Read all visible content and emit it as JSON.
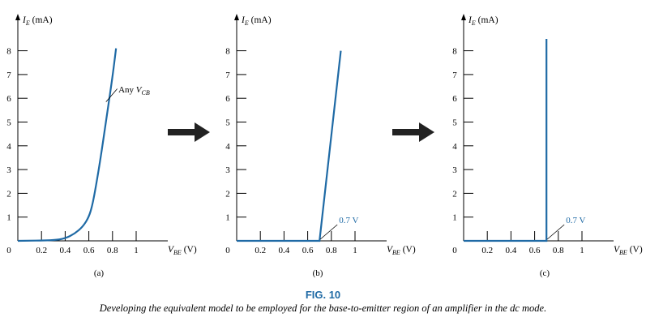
{
  "figure": {
    "number": "FIG. 10",
    "caption": "Developing the equivalent model to be employed for the base-to-emitter region of an amplifier in the dc mode.",
    "accent_color": "#1f6aa5",
    "arrow_color": "#222222"
  },
  "chart_data": [
    {
      "type": "line",
      "panel_label": "(a)",
      "ylabel": "I_E (mA)",
      "xlabel": "V_BE (V)",
      "xlim": [
        0,
        1
      ],
      "ylim": [
        0,
        8
      ],
      "x_ticks": [
        "0",
        "0.2",
        "0.4",
        "0.6",
        "0.8",
        "1"
      ],
      "x_tick_values": [
        0,
        0.2,
        0.4,
        0.6,
        0.8,
        1
      ],
      "y_ticks": [
        "1",
        "2",
        "3",
        "4",
        "5",
        "6",
        "7",
        "8"
      ],
      "y_tick_values": [
        1,
        2,
        3,
        4,
        5,
        6,
        7,
        8
      ],
      "annotation": "Any V_CB",
      "series": [
        {
          "x": [
            0,
            0.3,
            0.4,
            0.48,
            0.55,
            0.6,
            0.63,
            0.66,
            0.7,
            0.75,
            0.8,
            0.83
          ],
          "y": [
            0,
            0.02,
            0.1,
            0.3,
            0.6,
            1.0,
            1.5,
            2.3,
            3.5,
            5.2,
            6.9,
            8.1
          ]
        }
      ]
    },
    {
      "type": "line",
      "panel_label": "(b)",
      "ylabel": "I_E (mA)",
      "xlabel": "V_BE (V)",
      "xlim": [
        0,
        1
      ],
      "ylim": [
        0,
        8
      ],
      "x_ticks": [
        "0",
        "0.2",
        "0.4",
        "0.6",
        "0.8",
        "1"
      ],
      "x_tick_values": [
        0,
        0.2,
        0.4,
        0.6,
        0.8,
        1
      ],
      "y_ticks": [
        "1",
        "2",
        "3",
        "4",
        "5",
        "6",
        "7",
        "8"
      ],
      "y_tick_values": [
        1,
        2,
        3,
        4,
        5,
        6,
        7,
        8
      ],
      "annotation": "0.7 V",
      "series": [
        {
          "x": [
            0,
            0.7,
            0.88
          ],
          "y": [
            0,
            0,
            8.0
          ]
        }
      ]
    },
    {
      "type": "line",
      "panel_label": "(c)",
      "ylabel": "I_E (mA)",
      "xlabel": "V_BE (V)",
      "xlim": [
        0,
        1
      ],
      "ylim": [
        0,
        8
      ],
      "x_ticks": [
        "0",
        "0.2",
        "0.4",
        "0.6",
        "0.8",
        "1"
      ],
      "x_tick_values": [
        0,
        0.2,
        0.4,
        0.6,
        0.8,
        1
      ],
      "y_ticks": [
        "1",
        "2",
        "3",
        "4",
        "5",
        "6",
        "7",
        "8"
      ],
      "y_tick_values": [
        1,
        2,
        3,
        4,
        5,
        6,
        7,
        8
      ],
      "annotation": "0.7 V",
      "series": [
        {
          "x": [
            0,
            0.7,
            0.7
          ],
          "y": [
            0,
            0,
            8.5
          ]
        }
      ]
    }
  ]
}
